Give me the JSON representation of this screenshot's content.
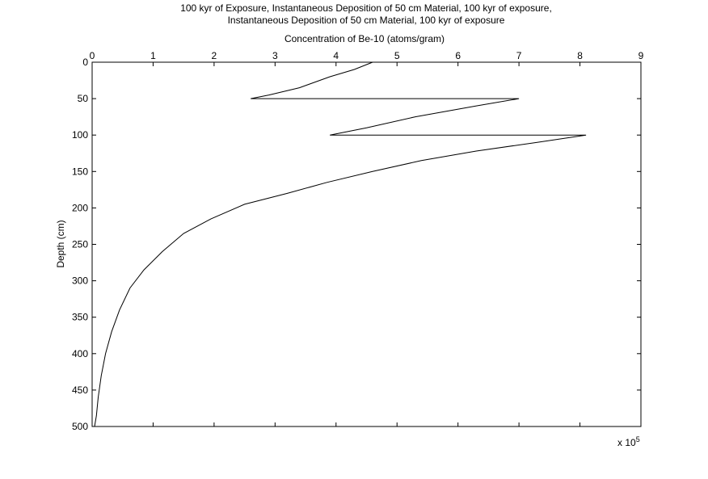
{
  "chart_data": {
    "type": "line",
    "title": [
      "100 kyr of Exposure, Instantaneous Deposition of 50 cm Material, 100 kyr of exposure,",
      "Instantaneous Deposition of 50 cm Material, 100 kyr of exposure"
    ],
    "xlabel": "Concentration of Be-10 (atoms/gram)",
    "ylabel": "Depth (cm)",
    "x_exponent_label": "x 10",
    "x_exponent_power": "5",
    "x_axis_location": "top",
    "y_axis_reversed": true,
    "xlim": [
      0,
      9
    ],
    "ylim": [
      0,
      500
    ],
    "xticks": [
      "0",
      "1",
      "2",
      "3",
      "4",
      "5",
      "6",
      "7",
      "8",
      "9"
    ],
    "yticks": [
      "0",
      "50",
      "100",
      "150",
      "200",
      "250",
      "300",
      "350",
      "400",
      "450",
      "500"
    ],
    "grid": false,
    "series": [
      {
        "color": "#000000",
        "x": [
          4.6,
          4.3,
          3.9,
          3.4,
          2.9,
          2.6,
          4.8,
          7.0,
          6.3,
          5.3,
          4.5,
          3.9,
          5.9,
          8.1,
          7.3,
          6.3,
          5.4,
          4.6,
          3.85,
          3.2,
          2.5,
          1.95,
          1.5,
          1.15,
          0.85,
          0.62,
          0.45,
          0.32,
          0.22,
          0.15,
          0.1,
          0.07,
          0.04
        ],
        "y": [
          0,
          10,
          20,
          35,
          45,
          50,
          50,
          50,
          60,
          75,
          90,
          100,
          100,
          100,
          110,
          122,
          135,
          150,
          165,
          180,
          195,
          215,
          235,
          260,
          285,
          310,
          340,
          370,
          400,
          430,
          460,
          485,
          500
        ]
      }
    ]
  }
}
